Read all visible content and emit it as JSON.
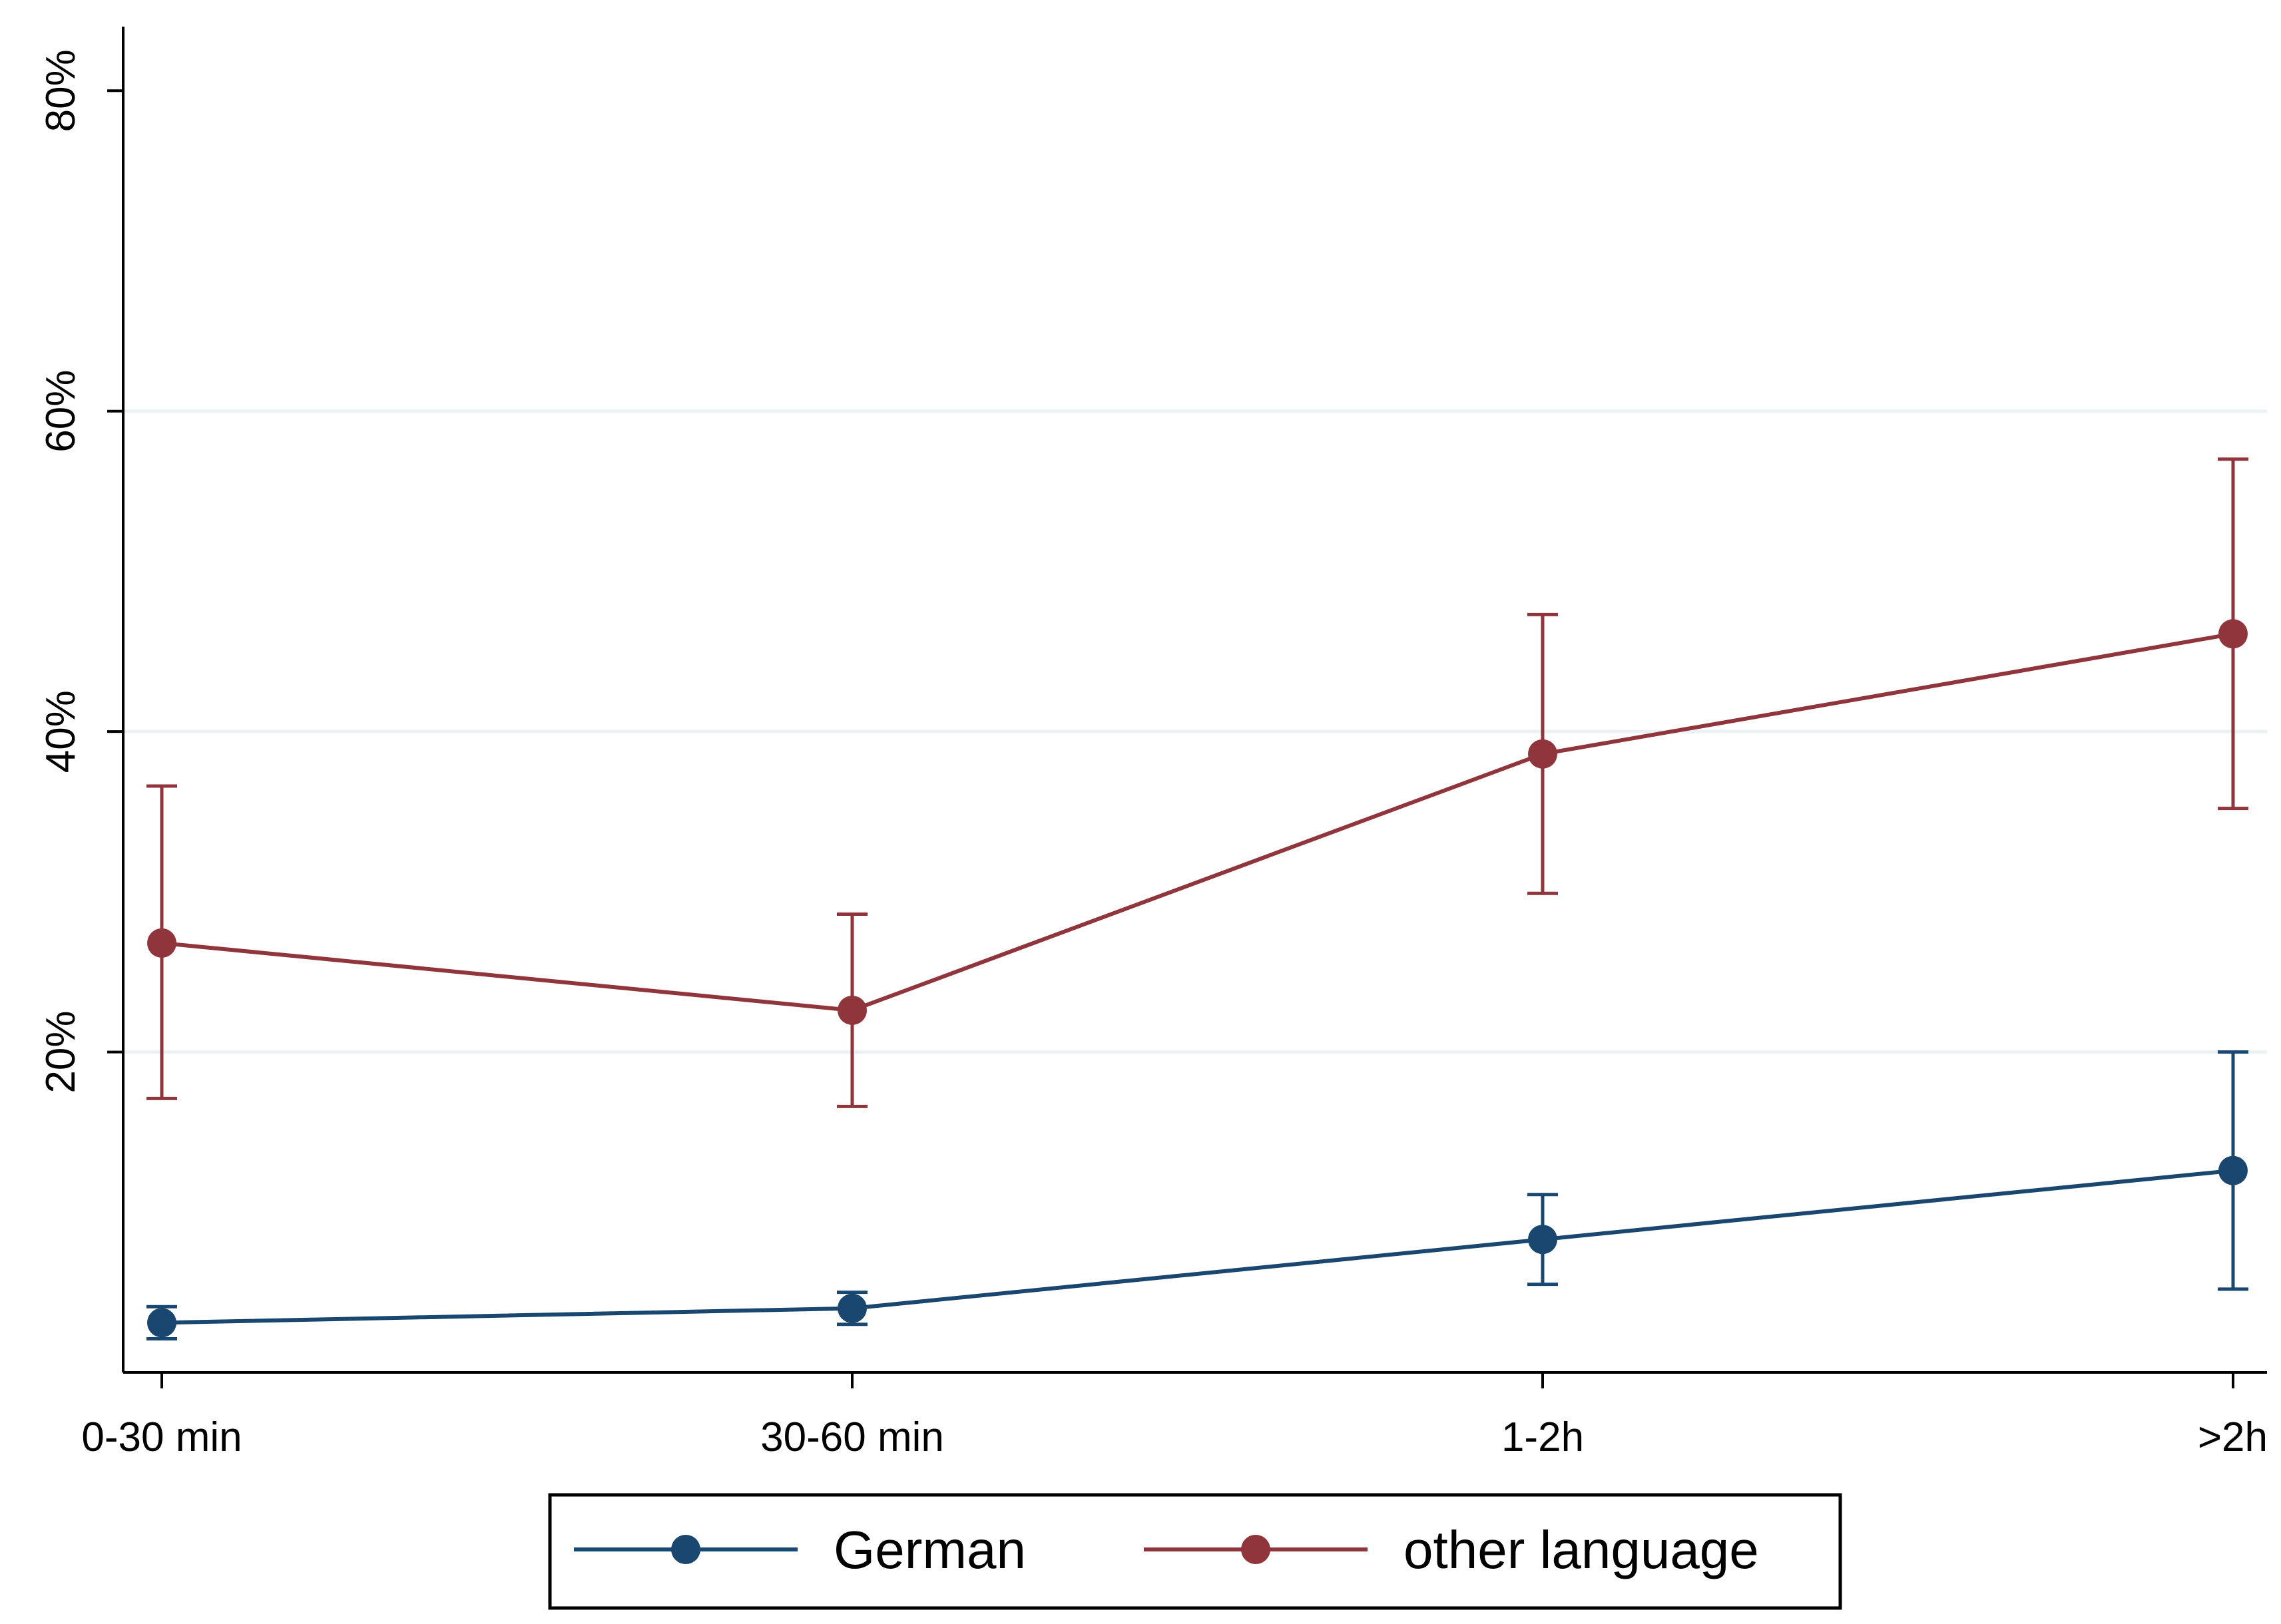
{
  "chart_data": {
    "type": "line",
    "title": "",
    "xlabel": "",
    "ylabel": "",
    "categories": [
      "0-30 min",
      "30-60 min",
      "1-2h",
      ">2h"
    ],
    "ylim": [
      0,
      84
    ],
    "yticks": [
      20,
      40,
      60,
      80
    ],
    "ytick_labels": [
      "20%",
      "40%",
      "60%",
      "80%"
    ],
    "grid": true,
    "legend_position": "bottom",
    "series": [
      {
        "name": "German",
        "color": "#1a476f",
        "values": [
          3.1,
          4.0,
          8.3,
          12.6
        ],
        "ci_low": [
          2.1,
          3.0,
          5.5,
          5.2
        ],
        "ci_high": [
          4.1,
          5.0,
          11.1,
          20.0
        ]
      },
      {
        "name": "other language",
        "color": "#90353b",
        "values": [
          26.8,
          22.6,
          38.6,
          46.1
        ],
        "ci_low": [
          17.1,
          16.6,
          29.9,
          35.2
        ],
        "ci_high": [
          36.6,
          28.6,
          47.3,
          57.0
        ]
      }
    ]
  }
}
